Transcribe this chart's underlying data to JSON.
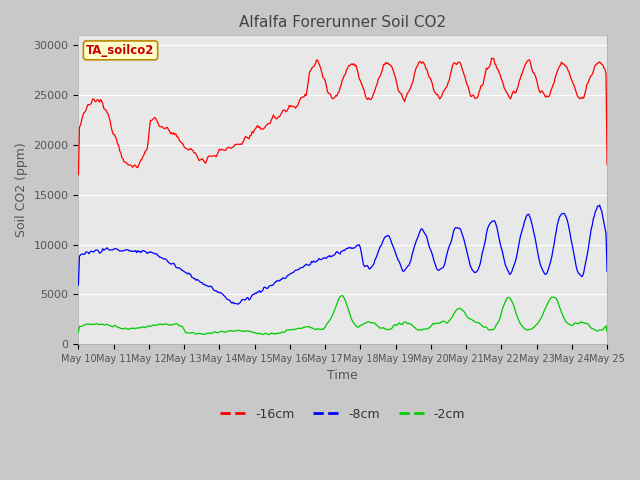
{
  "title": "Alfalfa Forerunner Soil CO2",
  "xlabel": "Time",
  "ylabel": "Soil CO2 (ppm)",
  "ylim": [
    0,
    31000
  ],
  "yticks": [
    0,
    5000,
    10000,
    15000,
    20000,
    25000,
    30000
  ],
  "tag_label": "TA_soilco2",
  "legend_labels": [
    "-16cm",
    "-8cm",
    "-2cm"
  ],
  "legend_colors": [
    "#ff0000",
    "#0000ff",
    "#00cc00"
  ],
  "line_colors": [
    "#ff0000",
    "#0000ff",
    "#00cc00"
  ],
  "plot_bg_color": "#e8e8e8",
  "fig_bg_color": "#c8c8c8",
  "tag_bg": "#ffffcc",
  "tag_border": "#bb8800",
  "tag_text_color": "#cc0000",
  "title_color": "#444444",
  "axis_label_color": "#555555",
  "tick_label_color": "#555555",
  "grid_color": "#ffffff",
  "num_points": 500,
  "xtick_labels": [
    "May 10",
    "May 11",
    "May 12",
    "May 13",
    "May 14",
    "May 15",
    "May 16",
    "May 17",
    "May 18",
    "May 19",
    "May 20",
    "May 21",
    "May 22",
    "May 23",
    "May 24",
    "May 25"
  ]
}
